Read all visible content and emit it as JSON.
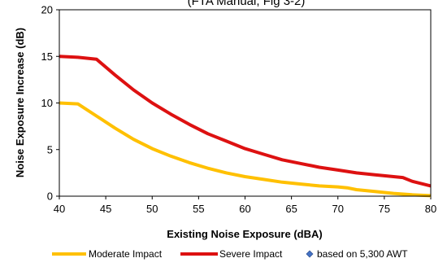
{
  "chart_data": {
    "type": "line",
    "title": "(FTA Manual, Fig 3-2)",
    "xlabel": "Existing Noise Exposure (dBA)",
    "ylabel": "Noise Exposure Increase (dB)",
    "xlim": [
      40,
      80
    ],
    "ylim": [
      0,
      20
    ],
    "xticks": [
      40,
      45,
      50,
      55,
      60,
      65,
      70,
      75,
      80
    ],
    "yticks": [
      0,
      5,
      10,
      15,
      20
    ],
    "grid": false,
    "legend_position": "bottom",
    "series": [
      {
        "name": "Moderate Impact",
        "color": "#FFC000",
        "marker": "none",
        "x": [
          40,
          42,
          44,
          46,
          48,
          50,
          52,
          54,
          56,
          58,
          60,
          62,
          64,
          66,
          68,
          70,
          71,
          72,
          74,
          76,
          78,
          80
        ],
        "y": [
          10,
          9.9,
          8.6,
          7.3,
          6.1,
          5.1,
          4.3,
          3.6,
          3.0,
          2.5,
          2.1,
          1.8,
          1.5,
          1.3,
          1.1,
          1.0,
          0.9,
          0.7,
          0.5,
          0.3,
          0.15,
          0.05
        ]
      },
      {
        "name": "Severe Impact",
        "color": "#DD1111",
        "marker": "none",
        "x": [
          40,
          42,
          44,
          46,
          48,
          50,
          52,
          54,
          56,
          58,
          60,
          62,
          64,
          66,
          68,
          70,
          72,
          74,
          76,
          77,
          78,
          80
        ],
        "y": [
          15,
          14.9,
          14.7,
          13.0,
          11.4,
          10.0,
          8.8,
          7.7,
          6.7,
          5.9,
          5.1,
          4.5,
          3.9,
          3.5,
          3.1,
          2.8,
          2.5,
          2.3,
          2.1,
          2.0,
          1.6,
          1.1
        ]
      },
      {
        "name": "based on 5,300 AWT",
        "color": "#4472C4",
        "marker": "diamond",
        "x": [],
        "y": []
      }
    ]
  }
}
